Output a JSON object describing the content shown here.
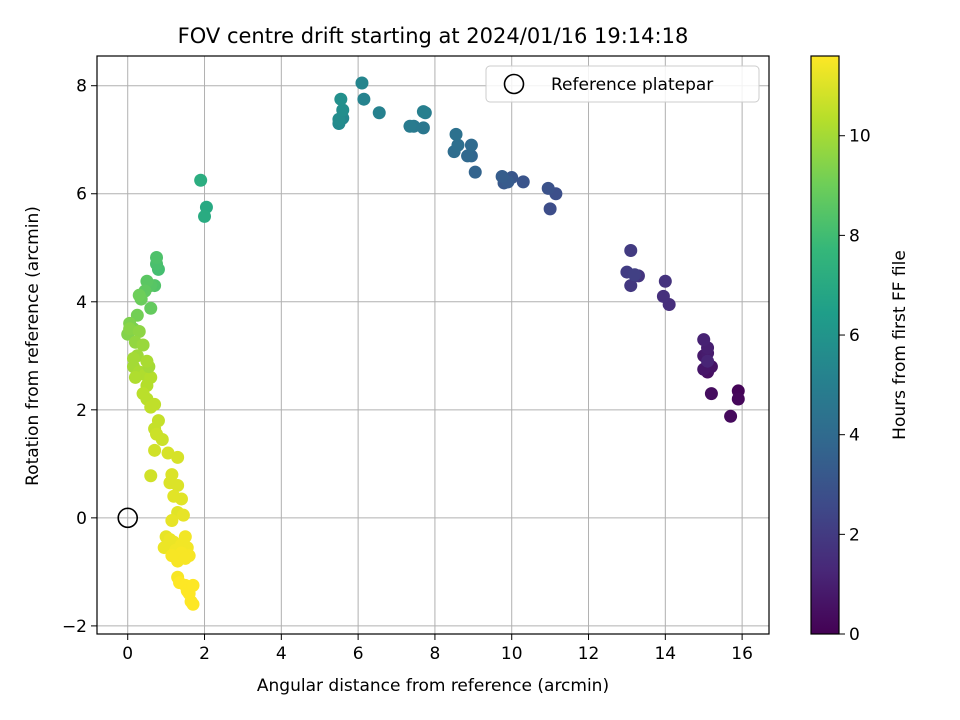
{
  "chart_data": {
    "type": "scatter",
    "title": "FOV centre drift starting at 2024/01/16 19:14:18",
    "xlabel": "Angular distance from reference (arcmin)",
    "ylabel": "Rotation from reference (arcmin)",
    "xlim": [
      -0.8,
      16.7
    ],
    "ylim": [
      -2.15,
      8.55
    ],
    "xticks": [
      0,
      2,
      4,
      6,
      8,
      10,
      12,
      14,
      16
    ],
    "yticks": [
      -2,
      0,
      2,
      4,
      6,
      8
    ],
    "xtick_labels": [
      "0",
      "2",
      "4",
      "6",
      "8",
      "10",
      "12",
      "14",
      "16"
    ],
    "ytick_labels": [
      "−2",
      "0",
      "2",
      "4",
      "6",
      "8"
    ],
    "grid": true,
    "legend": {
      "position": "top-right",
      "entries": [
        "Reference platepar"
      ]
    },
    "reference_point": {
      "x": 0,
      "y": 0,
      "label": "Reference platepar"
    },
    "colorbar": {
      "label": "Hours from first FF file",
      "colormap": "viridis",
      "range": [
        0,
        11.6
      ],
      "ticks": [
        0,
        2,
        4,
        6,
        8,
        10
      ],
      "tick_labels": [
        "0",
        "2",
        "4",
        "6",
        "8",
        "10"
      ]
    },
    "colormap_stops": [
      "#440154",
      "#482878",
      "#3e4a89",
      "#31688e",
      "#26828e",
      "#1f9e89",
      "#35b779",
      "#6ece58",
      "#b5de2b",
      "#fde725"
    ],
    "points": [
      [
        15.9,
        2.35,
        0.1
      ],
      [
        15.9,
        2.2,
        0.2
      ],
      [
        15.7,
        1.88,
        0.3
      ],
      [
        15.2,
        2.3,
        0.4
      ],
      [
        15.1,
        2.7,
        0.5
      ],
      [
        15.2,
        2.8,
        0.6
      ],
      [
        15.0,
        2.75,
        0.7
      ],
      [
        15.0,
        3.0,
        0.8
      ],
      [
        15.1,
        3.05,
        0.9
      ],
      [
        15.1,
        3.15,
        1.0
      ],
      [
        15.0,
        3.3,
        1.1
      ],
      [
        15.1,
        2.9,
        1.2
      ],
      [
        14.1,
        3.95,
        1.5
      ],
      [
        13.95,
        4.1,
        1.6
      ],
      [
        14.0,
        4.38,
        1.7
      ],
      [
        13.3,
        4.48,
        1.8
      ],
      [
        13.1,
        4.3,
        1.9
      ],
      [
        13.1,
        4.95,
        2.0
      ],
      [
        13.0,
        4.55,
        2.1
      ],
      [
        13.2,
        4.5,
        2.2
      ],
      [
        11.0,
        5.72,
        2.7
      ],
      [
        11.15,
        6.0,
        2.8
      ],
      [
        10.95,
        6.1,
        2.9
      ],
      [
        10.3,
        6.22,
        3.0
      ],
      [
        10.0,
        6.3,
        3.1
      ],
      [
        9.8,
        6.2,
        3.2
      ],
      [
        9.9,
        6.22,
        3.3
      ],
      [
        9.75,
        6.32,
        3.4
      ],
      [
        9.05,
        6.4,
        3.7
      ],
      [
        8.95,
        6.7,
        3.8
      ],
      [
        8.85,
        6.7,
        3.9
      ],
      [
        8.95,
        6.9,
        4.0
      ],
      [
        8.5,
        6.78,
        4.1
      ],
      [
        8.6,
        6.9,
        4.2
      ],
      [
        8.55,
        7.1,
        4.3
      ],
      [
        7.7,
        7.22,
        4.6
      ],
      [
        7.45,
        7.25,
        4.7
      ],
      [
        7.35,
        7.25,
        4.8
      ],
      [
        7.75,
        7.5,
        4.9
      ],
      [
        7.7,
        7.52,
        5.0
      ],
      [
        6.55,
        7.5,
        5.1
      ],
      [
        6.15,
        7.75,
        5.2
      ],
      [
        6.1,
        8.05,
        5.3
      ],
      [
        5.6,
        7.4,
        5.4
      ],
      [
        5.5,
        7.3,
        5.5
      ],
      [
        5.5,
        7.38,
        5.6
      ],
      [
        5.6,
        7.55,
        5.7
      ],
      [
        5.55,
        7.75,
        5.8
      ],
      [
        2.05,
        5.75,
        7.0
      ],
      [
        2.0,
        5.58,
        7.1
      ],
      [
        1.9,
        6.25,
        7.2
      ],
      [
        0.8,
        4.6,
        8.1
      ],
      [
        0.75,
        4.7,
        8.2
      ],
      [
        0.75,
        4.82,
        8.3
      ],
      [
        0.7,
        4.3,
        8.4
      ],
      [
        0.6,
        4.3,
        8.5
      ],
      [
        0.5,
        4.38,
        8.6
      ],
      [
        0.45,
        4.2,
        8.7
      ],
      [
        0.6,
        3.88,
        8.8
      ],
      [
        0.35,
        4.05,
        8.9
      ],
      [
        0.3,
        4.12,
        9.0
      ],
      [
        0.25,
        3.75,
        9.1
      ],
      [
        0.15,
        3.5,
        9.2
      ],
      [
        0.05,
        3.6,
        9.3
      ],
      [
        0.0,
        3.4,
        9.4
      ],
      [
        0.05,
        3.5,
        9.5
      ],
      [
        0.3,
        3.45,
        9.6
      ],
      [
        0.2,
        3.25,
        9.7
      ],
      [
        0.4,
        3.2,
        9.8
      ],
      [
        0.25,
        3.0,
        9.9
      ],
      [
        0.15,
        2.8,
        10.0
      ],
      [
        0.3,
        2.7,
        10.1
      ],
      [
        0.45,
        2.65,
        10.2
      ],
      [
        0.6,
        2.6,
        10.3
      ],
      [
        0.55,
        2.8,
        10.0
      ],
      [
        0.5,
        2.9,
        10.1
      ],
      [
        0.2,
        2.6,
        10.2
      ],
      [
        0.15,
        2.95,
        10.0
      ],
      [
        0.5,
        2.45,
        10.3
      ],
      [
        0.4,
        2.3,
        10.4
      ],
      [
        0.5,
        2.2,
        10.4
      ],
      [
        0.6,
        2.05,
        10.5
      ],
      [
        0.7,
        2.1,
        10.5
      ],
      [
        0.8,
        1.8,
        10.6
      ],
      [
        0.7,
        1.65,
        10.6
      ],
      [
        0.75,
        1.55,
        10.7
      ],
      [
        0.9,
        1.45,
        10.7
      ],
      [
        0.7,
        1.25,
        10.8
      ],
      [
        0.6,
        0.78,
        10.8
      ],
      [
        1.05,
        1.2,
        10.9
      ],
      [
        1.3,
        1.12,
        10.9
      ],
      [
        1.15,
        0.8,
        11.0
      ],
      [
        1.1,
        0.65,
        11.0
      ],
      [
        1.3,
        0.6,
        11.0
      ],
      [
        1.2,
        0.4,
        11.1
      ],
      [
        1.4,
        0.35,
        11.1
      ],
      [
        1.3,
        0.1,
        11.1
      ],
      [
        1.45,
        0.05,
        11.2
      ],
      [
        1.15,
        -0.05,
        11.2
      ],
      [
        1.0,
        -0.35,
        11.2
      ],
      [
        1.1,
        -0.4,
        11.3
      ],
      [
        0.95,
        -0.55,
        11.3
      ],
      [
        1.2,
        -0.45,
        11.3
      ],
      [
        1.25,
        -0.6,
        11.4
      ],
      [
        1.4,
        -0.5,
        11.4
      ],
      [
        1.5,
        -0.35,
        11.4
      ],
      [
        1.55,
        -0.55,
        11.4
      ],
      [
        1.6,
        -0.7,
        11.5
      ],
      [
        1.3,
        -0.8,
        11.5
      ],
      [
        1.4,
        -0.65,
        11.5
      ],
      [
        1.5,
        -0.75,
        11.5
      ],
      [
        1.15,
        -0.7,
        11.5
      ],
      [
        1.3,
        -1.1,
        11.5
      ],
      [
        1.35,
        -1.2,
        11.6
      ],
      [
        1.5,
        -1.25,
        11.6
      ],
      [
        1.55,
        -1.35,
        11.6
      ],
      [
        1.6,
        -1.4,
        11.6
      ],
      [
        1.7,
        -1.25,
        11.6
      ],
      [
        1.65,
        -1.55,
        11.6
      ],
      [
        1.7,
        -1.6,
        11.6
      ]
    ]
  }
}
